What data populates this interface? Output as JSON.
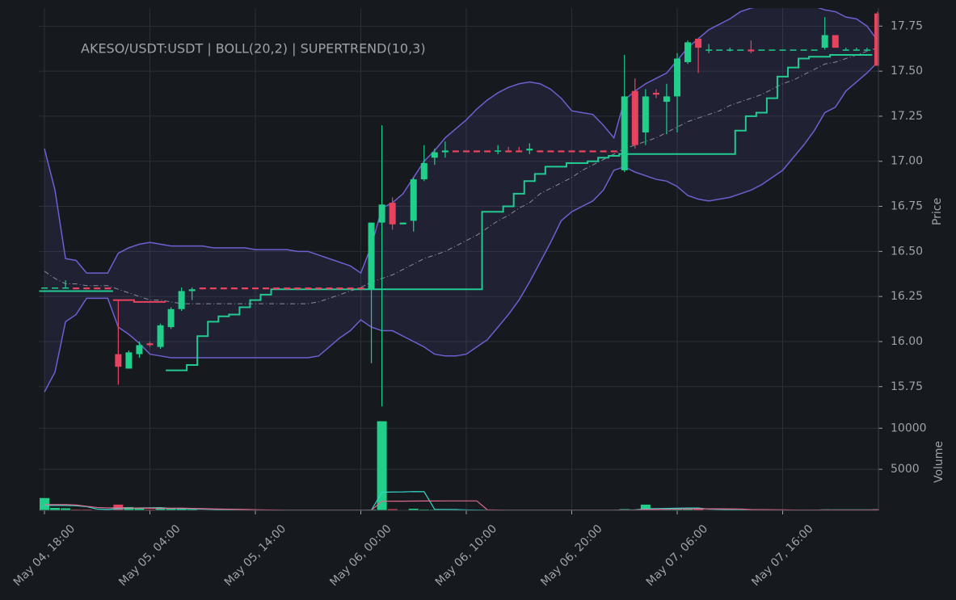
{
  "chart_data": {
    "type": "candlestick",
    "title": "AKESO/USDT:USDT | BOLL(20,2) | SUPERTREND(10,3)",
    "ylabel": "Price",
    "y2label": "Volume",
    "grid": true,
    "up_color": "#1fcf8a",
    "down_color": "#e8435e",
    "categories": [
      "May 04, 18:00",
      null,
      null,
      null,
      null,
      null,
      null,
      null,
      null,
      null,
      "May 05, 04:00",
      null,
      null,
      null,
      null,
      null,
      null,
      null,
      null,
      null,
      "May 05, 14:00",
      null,
      null,
      null,
      null,
      null,
      null,
      null,
      null,
      null,
      "May 06, 00:00",
      null,
      null,
      null,
      null,
      null,
      null,
      null,
      null,
      null,
      "May 06, 10:00",
      null,
      null,
      null,
      null,
      null,
      null,
      null,
      null,
      null,
      "May 06, 20:00",
      null,
      null,
      null,
      null,
      null,
      null,
      null,
      null,
      null,
      "May 07, 06:00",
      null,
      null,
      null,
      null,
      null,
      null,
      null,
      null,
      null,
      "May 07, 16:00",
      null,
      null,
      null,
      null,
      null,
      null,
      null,
      null,
      null
    ],
    "open": [
      16.3,
      16.3,
      16.3,
      16.3,
      16.3,
      16.3,
      16.3,
      15.93,
      15.85,
      15.93,
      15.99,
      15.97,
      16.08,
      16.18,
      16.28,
      16.3,
      16.3,
      16.3,
      16.3,
      16.3,
      16.3,
      16.3,
      16.3,
      16.3,
      16.3,
      16.3,
      16.3,
      16.3,
      16.3,
      16.3,
      16.3,
      16.29,
      16.66,
      16.77,
      16.65,
      16.67,
      16.9,
      17.02,
      17.05,
      17.06,
      17.06,
      17.06,
      17.06,
      17.06,
      17.06,
      17.06,
      17.06,
      17.06,
      17.06,
      17.06,
      17.06,
      17.06,
      17.06,
      17.06,
      17.06,
      16.95,
      17.39,
      17.16,
      17.38,
      17.33,
      17.36,
      17.55,
      17.68,
      17.62,
      17.62,
      17.62,
      17.62,
      17.62,
      17.62,
      17.62,
      17.62,
      17.62,
      17.62,
      17.62,
      17.63,
      17.7,
      17.62,
      17.62,
      17.62,
      17.82
    ],
    "high": [
      16.3,
      16.3,
      16.34,
      16.3,
      16.3,
      16.3,
      16.3,
      16.23,
      15.95,
      16.0,
      16.0,
      16.1,
      16.19,
      16.3,
      16.3,
      16.3,
      16.3,
      16.3,
      16.3,
      16.3,
      16.3,
      16.3,
      16.3,
      16.3,
      16.3,
      16.3,
      16.3,
      16.3,
      16.3,
      16.3,
      16.3,
      16.66,
      17.2,
      16.8,
      16.66,
      16.91,
      17.09,
      17.07,
      17.11,
      17.06,
      17.06,
      17.06,
      17.06,
      17.09,
      17.08,
      17.08,
      17.1,
      17.06,
      17.06,
      17.06,
      17.06,
      17.06,
      17.06,
      17.06,
      17.06,
      17.59,
      17.46,
      17.4,
      17.4,
      17.43,
      17.6,
      17.67,
      17.68,
      17.65,
      17.62,
      17.63,
      17.62,
      17.67,
      17.62,
      17.62,
      17.62,
      17.62,
      17.62,
      17.62,
      17.8,
      17.7,
      17.63,
      17.63,
      17.63,
      17.83
    ],
    "low": [
      16.3,
      16.3,
      16.3,
      16.29,
      16.29,
      16.29,
      16.29,
      15.76,
      15.85,
      15.91,
      15.97,
      15.96,
      16.07,
      16.17,
      16.23,
      16.29,
      16.29,
      16.29,
      16.29,
      16.29,
      16.29,
      16.29,
      16.29,
      16.29,
      16.29,
      16.29,
      16.29,
      16.29,
      16.29,
      16.29,
      16.29,
      15.88,
      15.64,
      16.62,
      16.65,
      16.61,
      16.89,
      16.98,
      17.02,
      17.05,
      17.05,
      17.05,
      17.05,
      17.04,
      17.05,
      17.05,
      17.04,
      17.05,
      17.05,
      17.05,
      17.05,
      17.05,
      17.05,
      17.05,
      17.05,
      16.94,
      17.07,
      17.09,
      17.35,
      17.15,
      17.16,
      17.54,
      17.49,
      17.6,
      17.62,
      17.61,
      17.62,
      17.6,
      17.62,
      17.62,
      17.62,
      17.62,
      17.62,
      17.62,
      17.62,
      17.63,
      17.62,
      17.62,
      17.62,
      17.53
    ],
    "close": [
      16.3,
      16.3,
      16.3,
      16.29,
      16.29,
      16.29,
      16.29,
      15.86,
      15.94,
      15.98,
      15.98,
      16.09,
      16.18,
      16.28,
      16.29,
      16.29,
      16.29,
      16.29,
      16.29,
      16.29,
      16.29,
      16.29,
      16.29,
      16.29,
      16.29,
      16.29,
      16.29,
      16.29,
      16.29,
      16.29,
      16.29,
      16.66,
      16.76,
      16.65,
      16.66,
      16.9,
      16.99,
      17.05,
      17.06,
      17.05,
      17.05,
      17.05,
      17.05,
      17.06,
      17.05,
      17.05,
      17.07,
      17.05,
      17.05,
      17.05,
      17.05,
      17.05,
      17.05,
      17.05,
      17.05,
      17.36,
      17.09,
      17.36,
      17.37,
      17.36,
      17.57,
      17.66,
      17.63,
      17.62,
      17.62,
      17.62,
      17.62,
      17.61,
      17.62,
      17.62,
      17.62,
      17.62,
      17.62,
      17.62,
      17.7,
      17.63,
      17.62,
      17.62,
      17.62,
      17.53
    ],
    "volume": [
      1500,
      300,
      250,
      100,
      100,
      50,
      50,
      700,
      400,
      300,
      100,
      200,
      200,
      250,
      100,
      20,
      20,
      20,
      20,
      20,
      20,
      20,
      20,
      20,
      20,
      20,
      20,
      20,
      20,
      20,
      20,
      100,
      10850,
      150,
      50,
      200,
      100,
      80,
      60,
      20,
      20,
      20,
      20,
      20,
      20,
      20,
      20,
      20,
      20,
      20,
      20,
      20,
      20,
      20,
      20,
      150,
      100,
      700,
      100,
      150,
      250,
      200,
      150,
      30,
      30,
      30,
      30,
      30,
      30,
      30,
      30,
      30,
      30,
      30,
      120,
      80,
      30,
      30,
      30,
      150
    ],
    "bollinger": {
      "color": "#6f5fd0",
      "middle_color": "#8a8d93",
      "upper": [
        17.07,
        16.84,
        16.46,
        16.45,
        16.38,
        16.38,
        16.38,
        16.49,
        16.52,
        16.54,
        16.55,
        16.54,
        16.53,
        16.53,
        16.53,
        16.53,
        16.52,
        16.52,
        16.52,
        16.52,
        16.51,
        16.51,
        16.51,
        16.51,
        16.5,
        16.5,
        16.48,
        16.46,
        16.44,
        16.42,
        16.38,
        16.53,
        16.74,
        16.77,
        16.82,
        16.91,
        17.0,
        17.06,
        17.13,
        17.18,
        17.23,
        17.29,
        17.34,
        17.38,
        17.41,
        17.43,
        17.44,
        17.43,
        17.4,
        17.35,
        17.28,
        17.27,
        17.26,
        17.2,
        17.13,
        17.34,
        17.39,
        17.43,
        17.46,
        17.49,
        17.56,
        17.63,
        17.68,
        17.73,
        17.76,
        17.79,
        17.83,
        17.85,
        17.86,
        17.87,
        17.88,
        17.88,
        17.87,
        17.86,
        17.84,
        17.83,
        17.8,
        17.79,
        17.75,
        17.67
      ],
      "middle": [
        16.39,
        16.35,
        16.32,
        16.32,
        16.31,
        16.31,
        16.31,
        16.29,
        16.27,
        16.25,
        16.23,
        16.23,
        16.22,
        16.21,
        16.21,
        16.21,
        16.21,
        16.21,
        16.21,
        16.21,
        16.21,
        16.21,
        16.21,
        16.21,
        16.21,
        16.21,
        16.22,
        16.24,
        16.26,
        16.28,
        16.3,
        16.33,
        16.35,
        16.37,
        16.4,
        16.43,
        16.46,
        16.48,
        16.5,
        16.53,
        16.56,
        16.59,
        16.63,
        16.67,
        16.7,
        16.74,
        16.77,
        16.82,
        16.85,
        16.88,
        16.91,
        16.95,
        16.98,
        17.01,
        17.04,
        17.07,
        17.09,
        17.11,
        17.13,
        17.16,
        17.19,
        17.22,
        17.24,
        17.26,
        17.28,
        17.31,
        17.33,
        17.35,
        17.37,
        17.4,
        17.43,
        17.45,
        17.48,
        17.51,
        17.54,
        17.55,
        17.57,
        17.59,
        17.61,
        17.63
      ],
      "lower": [
        15.72,
        15.83,
        16.11,
        16.15,
        16.24,
        16.24,
        16.24,
        16.08,
        16.04,
        15.99,
        15.93,
        15.92,
        15.91,
        15.91,
        15.91,
        15.91,
        15.91,
        15.91,
        15.91,
        15.91,
        15.91,
        15.91,
        15.91,
        15.91,
        15.91,
        15.91,
        15.92,
        15.97,
        16.02,
        16.06,
        16.12,
        16.08,
        16.06,
        16.06,
        16.03,
        16.0,
        15.97,
        15.93,
        15.92,
        15.92,
        15.93,
        15.97,
        16.01,
        16.08,
        16.15,
        16.23,
        16.33,
        16.44,
        16.55,
        16.67,
        16.72,
        16.75,
        16.78,
        16.84,
        16.95,
        16.97,
        16.94,
        16.92,
        16.9,
        16.89,
        16.86,
        16.81,
        16.79,
        16.78,
        16.79,
        16.8,
        16.82,
        16.84,
        16.87,
        16.91,
        16.95,
        17.02,
        17.09,
        17.17,
        17.27,
        17.3,
        17.39,
        17.44,
        17.49,
        17.55
      ]
    },
    "supertrend": {
      "up_color": "#22c990",
      "down_color": "#e8435e",
      "up": [
        16.28,
        16.28,
        16.28,
        16.28,
        16.28,
        16.28,
        16.28,
        null,
        null,
        null,
        null,
        null,
        15.84,
        15.84,
        15.87,
        16.03,
        16.11,
        16.14,
        16.15,
        16.19,
        16.23,
        16.26,
        16.29,
        16.29,
        16.29,
        16.29,
        16.29,
        16.29,
        16.29,
        16.29,
        16.29,
        16.29,
        16.29,
        16.29,
        16.29,
        16.29,
        16.29,
        16.29,
        16.29,
        16.29,
        16.29,
        16.29,
        16.72,
        16.72,
        16.75,
        16.82,
        16.89,
        16.93,
        16.97,
        16.97,
        16.99,
        16.99,
        17.0,
        17.02,
        17.03,
        17.04,
        17.04,
        17.04,
        17.04,
        17.04,
        17.04,
        17.04,
        17.04,
        17.04,
        17.04,
        17.04,
        17.17,
        17.25,
        17.27,
        17.35,
        17.47,
        17.52,
        17.57,
        17.58,
        17.58,
        17.59,
        17.59,
        17.59,
        17.59,
        null
      ],
      "down": [
        null,
        null,
        null,
        null,
        null,
        null,
        null,
        16.23,
        16.23,
        16.22,
        16.22,
        16.22,
        null,
        null,
        null,
        null,
        null,
        null,
        null,
        null,
        null,
        null,
        null,
        null,
        null,
        null,
        null,
        null,
        null,
        null,
        null,
        null,
        null,
        null,
        null,
        null,
        null,
        null,
        null,
        null,
        null,
        null,
        null,
        null,
        null,
        null,
        null,
        null,
        null,
        null,
        null,
        null,
        null,
        null,
        null,
        null,
        null,
        null,
        null,
        null,
        null,
        null,
        null,
        null,
        null,
        null,
        null,
        null,
        null,
        null,
        null,
        null,
        null,
        null,
        null,
        null,
        null,
        null,
        null,
        null
      ]
    },
    "volume_ma": [
      {
        "color": "#35d6c7",
        "values": [
          600,
          600,
          600,
          560,
          450,
          160,
          110,
          200,
          260,
          300,
          310,
          340,
          240,
          210,
          170,
          154,
          118,
          82,
          36,
          20,
          20,
          20,
          20,
          20,
          20,
          20,
          20,
          20,
          20,
          20,
          20,
          36,
          2200,
          2236,
          2246,
          2286,
          2270,
          116,
          118,
          102,
          56,
          36,
          20,
          20,
          20,
          20,
          20,
          20,
          20,
          20,
          20,
          20,
          20,
          20,
          20,
          46,
          62,
          198,
          214,
          240,
          260,
          280,
          290,
          156,
          126,
          92,
          48,
          30,
          30,
          30,
          30,
          30,
          30,
          30,
          48,
          58,
          58,
          62,
          62,
          64
        ]
      },
      {
        "color": "#e06a8e",
        "values": [
          700,
          700,
          700,
          650,
          500,
          350,
          300,
          310,
          290,
          285,
          255,
          245,
          260,
          275,
          240,
          210,
          170,
          150,
          135,
          110,
          80,
          55,
          40,
          20,
          20,
          20,
          20,
          20,
          20,
          20,
          20,
          28,
          1110,
          1120,
          1120,
          1130,
          1140,
          1145,
          1150,
          1150,
          1150,
          1150,
          60,
          40,
          20,
          20,
          20,
          20,
          20,
          20,
          20,
          20,
          20,
          20,
          20,
          33,
          41,
          109,
          117,
          130,
          153,
          171,
          184,
          185,
          186,
          175,
          165,
          100,
          90,
          80,
          60,
          40,
          30,
          30,
          40,
          45,
          45,
          45,
          45,
          57
        ]
      }
    ],
    "ylim": [
      15.61,
      17.85
    ],
    "yticks": [
      15.75,
      {
        "value": 16,
        "label": "16.00"
      },
      16.25,
      {
        "value": 16.5,
        "label": "16.50"
      },
      16.75,
      {
        "value": 17,
        "label": "17.00"
      },
      17.25,
      {
        "value": 17.5,
        "label": "17.50"
      },
      17.75
    ],
    "y2lim": [
      0,
      11500
    ],
    "y2ticks": [
      5000,
      10000
    ]
  }
}
